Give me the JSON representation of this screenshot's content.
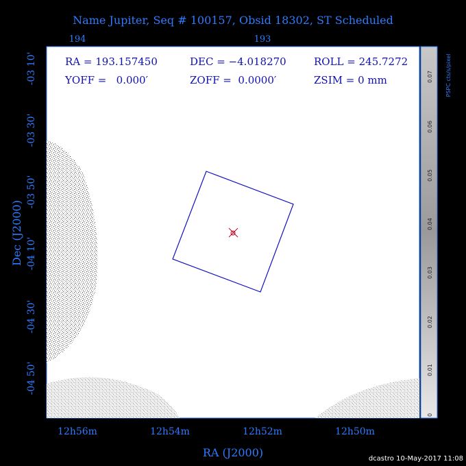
{
  "header": {
    "title": "Name Jupiter, Seq # 100157, Obsid 18302, ST Scheduled"
  },
  "plot": {
    "top_ticks": [
      "194",
      "193"
    ],
    "left_ticks": [
      "-03 10'",
      "-03 30'",
      "-03 50'",
      "-04 10'",
      "-04 30'",
      "-04 50'"
    ],
    "bottom_ticks": [
      "12h56m",
      "12h54m",
      "12h52m",
      "12h50m"
    ],
    "x_label": "RA (J2000)",
    "y_label": "Dec (J2000)",
    "info": [
      [
        "RA = 193.157450",
        "DEC = −4.018270",
        "ROLL = 245.7272"
      ],
      [
        "YOFF =   0.000′",
        "ZOFF =  0.0000′",
        "ZSIM = 0 mm"
      ]
    ]
  },
  "colorbar": {
    "ticks": [
      "0",
      "0.01",
      "0.02",
      "0.03",
      "0.04",
      "0.05",
      "0.06",
      "0.07"
    ],
    "label": "PSPC cts/s/pixel"
  },
  "footer": {
    "credit": "dcastro 10-May-2017 11:08"
  }
}
